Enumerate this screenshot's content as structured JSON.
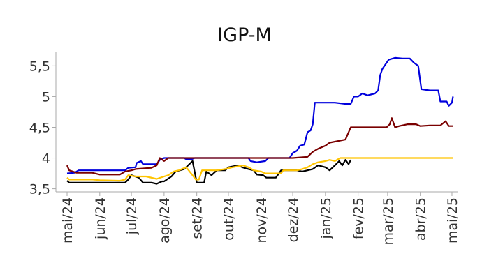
{
  "chart_data": {
    "type": "line",
    "title": "IGP-M",
    "xlabel": "",
    "ylabel": "",
    "ylim": [
      3.45,
      5.72
    ],
    "yticks": [
      3.5,
      4,
      4.5,
      5,
      5.5
    ],
    "ytick_labels": [
      "3,5",
      "4",
      "4,5",
      "5",
      "5,5"
    ],
    "xlim": [
      "2024-05-01",
      "2025-05-03"
    ],
    "xticks": [
      "2024-05-01",
      "2024-06-01",
      "2024-07-01",
      "2024-08-01",
      "2024-09-01",
      "2024-10-01",
      "2024-11-01",
      "2024-12-01",
      "2025-01-01",
      "2025-02-01",
      "2025-03-01",
      "2025-04-01",
      "2025-05-01"
    ],
    "xtick_labels": [
      "mai/24",
      "jun/24",
      "jul/24",
      "ago/24",
      "set/24",
      "out/24",
      "nov/24",
      "dez/24",
      "jan/25",
      "fev/25",
      "mar/25",
      "abr/25",
      "mai/25"
    ],
    "grid": false,
    "legend": "none",
    "series": [
      {
        "color": "#0000dd",
        "points": [
          [
            "2024-05-01",
            3.75
          ],
          [
            "2024-05-08",
            3.76
          ],
          [
            "2024-05-12",
            3.8
          ],
          [
            "2024-06-01",
            3.8
          ],
          [
            "2024-06-25",
            3.8
          ],
          [
            "2024-06-28",
            3.84
          ],
          [
            "2024-07-05",
            3.85
          ],
          [
            "2024-07-06",
            3.92
          ],
          [
            "2024-07-10",
            3.95
          ],
          [
            "2024-07-12",
            3.9
          ],
          [
            "2024-07-25",
            3.9
          ],
          [
            "2024-07-28",
            3.97
          ],
          [
            "2024-08-01",
            4.0
          ],
          [
            "2024-08-20",
            4.0
          ],
          [
            "2024-08-22",
            3.98
          ],
          [
            "2024-08-27",
            3.98
          ],
          [
            "2024-08-30",
            4.0
          ],
          [
            "2024-10-20",
            4.0
          ],
          [
            "2024-10-22",
            3.95
          ],
          [
            "2024-10-28",
            3.93
          ],
          [
            "2024-11-05",
            3.95
          ],
          [
            "2024-11-08",
            4.0
          ],
          [
            "2024-11-28",
            4.0
          ],
          [
            "2024-12-01",
            4.08
          ],
          [
            "2024-12-05",
            4.12
          ],
          [
            "2024-12-08",
            4.2
          ],
          [
            "2024-12-12",
            4.22
          ],
          [
            "2024-12-15",
            4.42
          ],
          [
            "2024-12-18",
            4.45
          ],
          [
            "2024-12-20",
            4.55
          ],
          [
            "2024-12-22",
            4.9
          ],
          [
            "2025-01-10",
            4.9
          ],
          [
            "2025-01-20",
            4.88
          ],
          [
            "2025-01-25",
            4.88
          ],
          [
            "2025-01-28",
            5.0
          ],
          [
            "2025-02-01",
            5.0
          ],
          [
            "2025-02-05",
            5.05
          ],
          [
            "2025-02-10",
            5.02
          ],
          [
            "2025-02-17",
            5.05
          ],
          [
            "2025-02-20",
            5.1
          ],
          [
            "2025-02-22",
            5.35
          ],
          [
            "2025-02-24",
            5.45
          ],
          [
            "2025-02-26",
            5.5
          ],
          [
            "2025-03-02",
            5.6
          ],
          [
            "2025-03-08",
            5.63
          ],
          [
            "2025-03-15",
            5.62
          ],
          [
            "2025-03-22",
            5.62
          ],
          [
            "2025-03-26",
            5.55
          ],
          [
            "2025-03-30",
            5.5
          ],
          [
            "2025-04-02",
            5.12
          ],
          [
            "2025-04-10",
            5.1
          ],
          [
            "2025-04-18",
            5.1
          ],
          [
            "2025-04-20",
            4.92
          ],
          [
            "2025-04-26",
            4.92
          ],
          [
            "2025-04-28",
            4.85
          ],
          [
            "2025-05-01",
            4.9
          ],
          [
            "2025-05-02",
            5.0
          ]
        ]
      },
      {
        "color": "#7a0000",
        "points": [
          [
            "2024-05-01",
            3.88
          ],
          [
            "2024-05-03",
            3.8
          ],
          [
            "2024-05-10",
            3.76
          ],
          [
            "2024-05-25",
            3.76
          ],
          [
            "2024-06-01",
            3.73
          ],
          [
            "2024-06-20",
            3.73
          ],
          [
            "2024-06-25",
            3.78
          ],
          [
            "2024-07-01",
            3.8
          ],
          [
            "2024-07-05",
            3.82
          ],
          [
            "2024-07-20",
            3.84
          ],
          [
            "2024-07-25",
            3.88
          ],
          [
            "2024-07-28",
            4.0
          ],
          [
            "2024-08-01",
            3.95
          ],
          [
            "2024-08-05",
            4.0
          ],
          [
            "2024-11-28",
            4.0
          ],
          [
            "2024-12-01",
            4.0
          ],
          [
            "2024-12-15",
            4.02
          ],
          [
            "2024-12-20",
            4.1
          ],
          [
            "2024-12-25",
            4.15
          ],
          [
            "2025-01-01",
            4.2
          ],
          [
            "2025-01-05",
            4.25
          ],
          [
            "2025-01-20",
            4.3
          ],
          [
            "2025-01-25",
            4.5
          ],
          [
            "2025-02-05",
            4.5
          ],
          [
            "2025-02-28",
            4.5
          ],
          [
            "2025-03-03",
            4.55
          ],
          [
            "2025-03-05",
            4.65
          ],
          [
            "2025-03-08",
            4.5
          ],
          [
            "2025-03-12",
            4.52
          ],
          [
            "2025-03-20",
            4.55
          ],
          [
            "2025-03-28",
            4.55
          ],
          [
            "2025-04-01",
            4.52
          ],
          [
            "2025-04-10",
            4.53
          ],
          [
            "2025-04-20",
            4.53
          ],
          [
            "2025-04-25",
            4.6
          ],
          [
            "2025-04-28",
            4.52
          ],
          [
            "2025-05-02",
            4.52
          ]
        ]
      },
      {
        "color": "#000000",
        "points": [
          [
            "2024-05-01",
            3.63
          ],
          [
            "2024-05-03",
            3.6
          ],
          [
            "2024-05-20",
            3.6
          ],
          [
            "2024-06-01",
            3.6
          ],
          [
            "2024-06-25",
            3.6
          ],
          [
            "2024-06-28",
            3.65
          ],
          [
            "2024-07-01",
            3.72
          ],
          [
            "2024-07-08",
            3.68
          ],
          [
            "2024-07-12",
            3.6
          ],
          [
            "2024-07-20",
            3.6
          ],
          [
            "2024-07-25",
            3.58
          ],
          [
            "2024-07-30",
            3.62
          ],
          [
            "2024-08-01",
            3.62
          ],
          [
            "2024-08-08",
            3.7
          ],
          [
            "2024-08-12",
            3.78
          ],
          [
            "2024-08-20",
            3.82
          ],
          [
            "2024-08-28",
            3.95
          ],
          [
            "2024-09-01",
            3.6
          ],
          [
            "2024-09-08",
            3.6
          ],
          [
            "2024-09-10",
            3.78
          ],
          [
            "2024-09-15",
            3.72
          ],
          [
            "2024-09-20",
            3.8
          ],
          [
            "2024-09-28",
            3.8
          ],
          [
            "2024-10-01",
            3.85
          ],
          [
            "2024-10-10",
            3.88
          ],
          [
            "2024-10-14",
            3.85
          ],
          [
            "2024-10-20",
            3.82
          ],
          [
            "2024-10-25",
            3.8
          ],
          [
            "2024-10-28",
            3.73
          ],
          [
            "2024-11-03",
            3.72
          ],
          [
            "2024-11-06",
            3.68
          ],
          [
            "2024-11-15",
            3.68
          ],
          [
            "2024-11-20",
            3.8
          ],
          [
            "2024-12-05",
            3.8
          ],
          [
            "2024-12-10",
            3.78
          ],
          [
            "2024-12-20",
            3.82
          ],
          [
            "2024-12-25",
            3.88
          ],
          [
            "2025-01-01",
            3.85
          ],
          [
            "2025-01-05",
            3.8
          ],
          [
            "2025-01-10",
            3.88
          ],
          [
            "2025-01-14",
            3.95
          ],
          [
            "2025-01-17",
            3.88
          ],
          [
            "2025-01-20",
            3.97
          ],
          [
            "2025-01-23",
            3.9
          ],
          [
            "2025-01-25",
            3.97
          ]
        ]
      },
      {
        "color": "#ffc400",
        "points": [
          [
            "2024-05-01",
            3.68
          ],
          [
            "2024-05-03",
            3.65
          ],
          [
            "2024-05-25",
            3.65
          ],
          [
            "2024-06-01",
            3.64
          ],
          [
            "2024-06-20",
            3.63
          ],
          [
            "2024-06-25",
            3.65
          ],
          [
            "2024-06-28",
            3.72
          ],
          [
            "2024-07-05",
            3.7
          ],
          [
            "2024-07-15",
            3.7
          ],
          [
            "2024-07-25",
            3.66
          ],
          [
            "2024-08-01",
            3.7
          ],
          [
            "2024-08-05",
            3.72
          ],
          [
            "2024-08-10",
            3.78
          ],
          [
            "2024-08-15",
            3.8
          ],
          [
            "2024-08-22",
            3.85
          ],
          [
            "2024-08-28",
            3.72
          ],
          [
            "2024-08-31",
            3.65
          ],
          [
            "2024-09-03",
            3.65
          ],
          [
            "2024-09-06",
            3.8
          ],
          [
            "2024-09-20",
            3.8
          ],
          [
            "2024-09-28",
            3.82
          ],
          [
            "2024-10-05",
            3.85
          ],
          [
            "2024-10-15",
            3.88
          ],
          [
            "2024-10-20",
            3.85
          ],
          [
            "2024-10-25",
            3.8
          ],
          [
            "2024-11-01",
            3.78
          ],
          [
            "2024-11-05",
            3.75
          ],
          [
            "2024-11-20",
            3.75
          ],
          [
            "2024-11-22",
            3.8
          ],
          [
            "2024-12-05",
            3.8
          ],
          [
            "2024-12-10",
            3.82
          ],
          [
            "2024-12-15",
            3.85
          ],
          [
            "2024-12-20",
            3.9
          ],
          [
            "2024-12-25",
            3.93
          ],
          [
            "2025-01-01",
            3.95
          ],
          [
            "2025-01-05",
            3.97
          ],
          [
            "2025-01-10",
            3.95
          ],
          [
            "2025-01-15",
            4.0
          ],
          [
            "2025-05-02",
            4.0
          ]
        ]
      }
    ]
  }
}
